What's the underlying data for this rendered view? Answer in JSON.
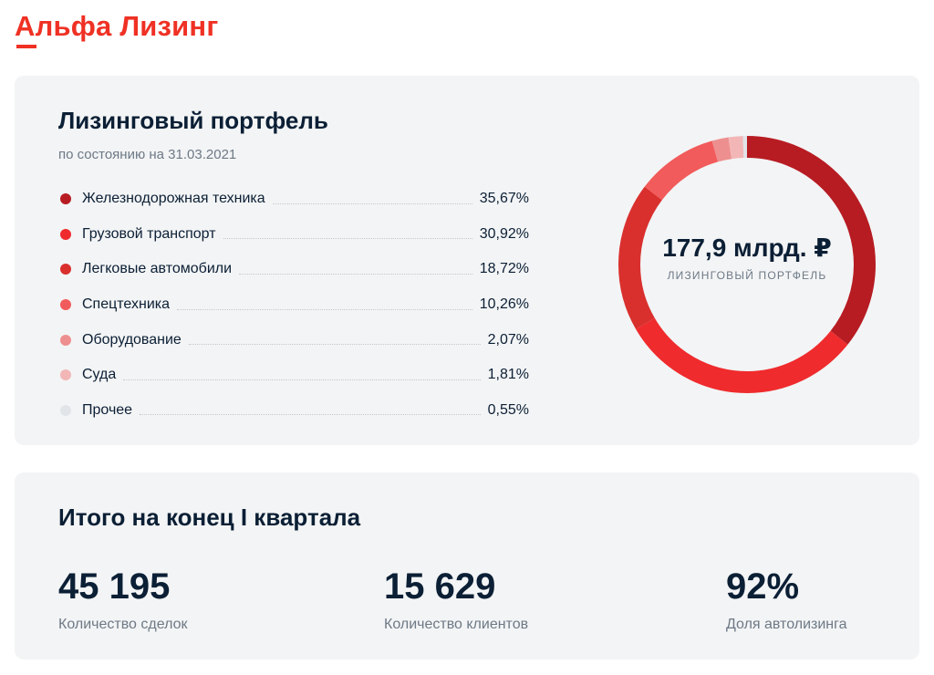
{
  "brand": {
    "name": "Альфа Лизинг",
    "color": "#ef3124"
  },
  "portfolio": {
    "title": "Лизинговый портфель",
    "subtitle": "по состоянию на 31.03.2021",
    "total_value": "177,9 млрд. ₽",
    "total_label": "ЛИЗИНГОВЫЙ ПОРТФЕЛЬ"
  },
  "chart_data": {
    "type": "pie",
    "title": "Лизинговый портфель",
    "subtitle": "по состоянию на 31.03.2021",
    "donut": true,
    "categories": [
      "Железнодорожная техника",
      "Грузовой транспорт",
      "Легковые автомобили",
      "Спецтехника",
      "Оборудование",
      "Суда",
      "Прочее"
    ],
    "values": [
      35.67,
      30.92,
      18.72,
      10.26,
      2.07,
      1.81,
      0.55
    ],
    "value_labels": [
      "35,67%",
      "30,92%",
      "18,72%",
      "10,26%",
      "2,07%",
      "1,81%",
      "0,55%"
    ],
    "colors": [
      "#b71c23",
      "#ef2b2d",
      "#d9302e",
      "#f25b5b",
      "#ee8f8f",
      "#f3b6b6",
      "#e1e4e8"
    ],
    "center_value": "177,9 млрд. ₽",
    "center_label": "ЛИЗИНГОВЫЙ ПОРТФЕЛЬ",
    "legend_position": "left"
  },
  "totals": {
    "title": "Итого на конец I квартала",
    "stats": [
      {
        "value": "45 195",
        "label": "Количество сделок"
      },
      {
        "value": "15 629",
        "label": "Количество клиентов"
      },
      {
        "value": "92%",
        "label": "Доля автолизинга"
      }
    ]
  }
}
